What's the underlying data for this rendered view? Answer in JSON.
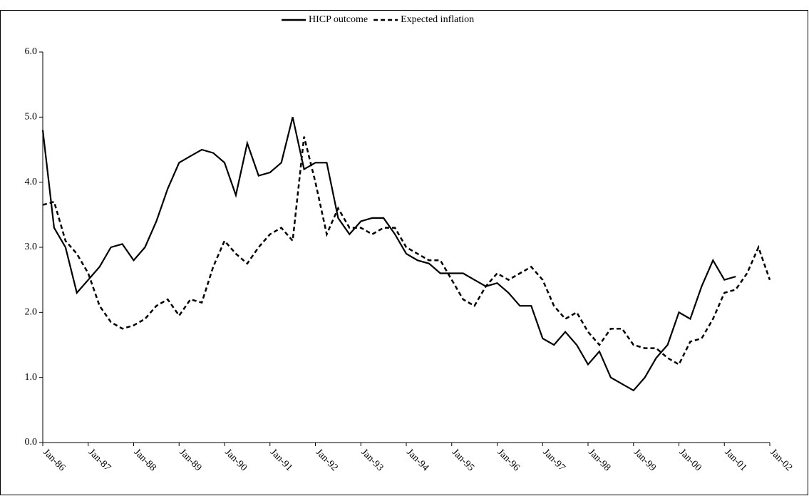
{
  "chart_data": {
    "type": "line",
    "categories": [
      "Jan-86",
      null,
      null,
      null,
      "Jan-87",
      null,
      null,
      null,
      "Jan-88",
      null,
      null,
      null,
      "Jan-89",
      null,
      null,
      null,
      "Jan-90",
      null,
      null,
      null,
      "Jan-91",
      null,
      null,
      null,
      "Jan-92",
      null,
      null,
      null,
      "Jan-93",
      null,
      null,
      null,
      "Jan-94",
      null,
      null,
      null,
      "Jan-95",
      null,
      null,
      null,
      "Jan-96",
      null,
      null,
      null,
      "Jan-97",
      null,
      null,
      null,
      "Jan-98",
      null,
      null,
      null,
      "Jan-99",
      null,
      null,
      null,
      "Jan-00",
      null,
      null,
      null,
      "Jan-01",
      null,
      null,
      null,
      "Jan-02"
    ],
    "series": [
      {
        "name": "HICP outcome",
        "color": "#000000",
        "dash": "solid",
        "values": [
          4.8,
          3.3,
          3.0,
          2.3,
          2.5,
          2.7,
          3.0,
          3.05,
          2.8,
          3.0,
          3.4,
          3.9,
          4.3,
          4.4,
          4.5,
          4.45,
          4.3,
          3.8,
          4.6,
          4.1,
          4.15,
          4.3,
          5.0,
          4.2,
          4.3,
          4.3,
          3.45,
          3.2,
          3.4,
          3.45,
          3.45,
          3.2,
          2.9,
          2.8,
          2.75,
          2.6,
          2.6,
          2.6,
          2.5,
          2.4,
          2.45,
          2.3,
          2.1,
          2.1,
          1.6,
          1.5,
          1.7,
          1.5,
          1.2,
          1.4,
          1.0,
          0.9,
          0.8,
          1.0,
          1.3,
          1.5,
          2.0,
          1.9,
          2.4,
          2.8,
          2.5,
          2.55,
          null,
          null,
          null
        ]
      },
      {
        "name": "Expected inflation",
        "color": "#000000",
        "dash": "dashed",
        "values": [
          3.65,
          3.7,
          3.1,
          2.9,
          2.6,
          2.1,
          1.85,
          1.75,
          1.8,
          1.9,
          2.1,
          2.2,
          1.95,
          2.2,
          2.15,
          2.7,
          3.1,
          2.9,
          2.75,
          3.0,
          3.2,
          3.3,
          3.1,
          4.7,
          4.0,
          3.2,
          3.6,
          3.3,
          3.3,
          3.2,
          3.3,
          3.3,
          3.0,
          2.9,
          2.8,
          2.8,
          2.5,
          2.2,
          2.1,
          2.4,
          2.6,
          2.5,
          2.6,
          2.7,
          2.5,
          2.1,
          1.9,
          2.0,
          1.7,
          1.5,
          1.75,
          1.75,
          1.5,
          1.45,
          1.45,
          1.3,
          1.2,
          1.55,
          1.6,
          1.9,
          2.3,
          2.35,
          2.6,
          3.0,
          2.5
        ]
      }
    ],
    "ylim": [
      0,
      6
    ],
    "yticks": [
      {
        "value": 0,
        "label": "0.0"
      },
      {
        "value": 1,
        "label": "1.0"
      },
      {
        "value": 2,
        "label": "2.0"
      },
      {
        "value": 3,
        "label": "3.0"
      },
      {
        "value": 4,
        "label": "4.0"
      },
      {
        "value": 5,
        "label": "5.0"
      },
      {
        "value": 6,
        "label": "6.0"
      }
    ],
    "legend": "top"
  }
}
